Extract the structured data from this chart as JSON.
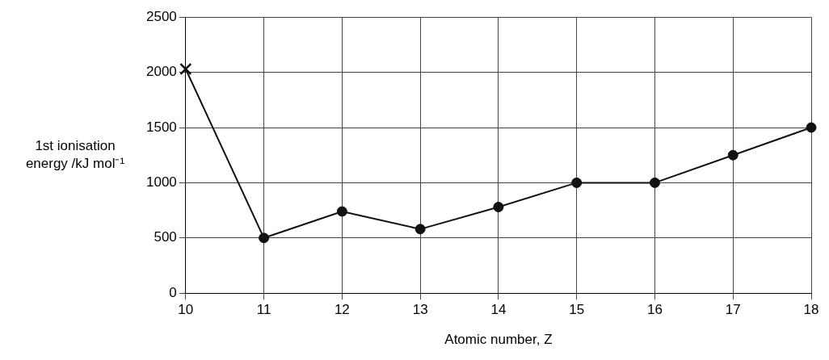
{
  "chart_data": {
    "type": "line",
    "xlabel": "Atomic number, Z",
    "ylabel": "1st ionisation energy /kJ mol⁻¹",
    "xlim": [
      10,
      18
    ],
    "xticks": [
      10,
      11,
      12,
      13,
      14,
      15,
      16,
      17,
      18
    ],
    "ylim": [
      0,
      2500
    ],
    "yticks": [
      0,
      500,
      1000,
      1500,
      2000,
      2500
    ],
    "grid": true,
    "series": [
      {
        "color": "#111111",
        "marker": "none",
        "x": [
          10,
          11,
          12,
          13,
          14,
          15,
          16,
          17,
          18
        ],
        "values": [
          2030,
          500,
          740,
          580,
          780,
          1000,
          1000,
          1250,
          1500
        ]
      },
      {
        "type": "scatter",
        "color": "#111111",
        "marker": "circle",
        "x": [
          11,
          12,
          13,
          14,
          15,
          16,
          17,
          18
        ],
        "values": [
          500,
          740,
          580,
          780,
          1000,
          1000,
          1250,
          1500
        ]
      },
      {
        "type": "scatter",
        "color": "#111111",
        "marker": "cross",
        "x": [
          10
        ],
        "values": [
          2030
        ]
      }
    ]
  }
}
